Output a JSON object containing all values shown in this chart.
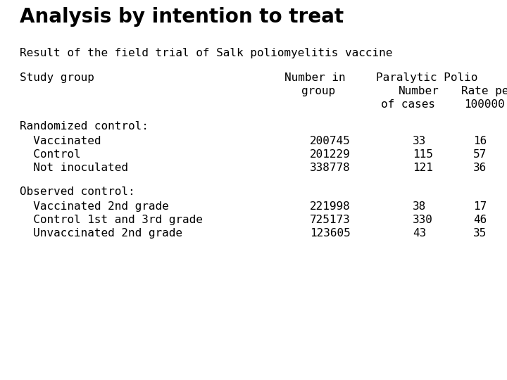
{
  "title": "Analysis by intention to treat",
  "subtitle": "Result of the field trial of Salk poliomyelitis vaccine",
  "section1_header": "Randomized control:",
  "section1_rows": [
    [
      "  Vaccinated",
      "200745",
      "33",
      "16"
    ],
    [
      "  Control",
      "201229",
      "115",
      "57"
    ],
    [
      "  Not inoculated",
      "338778",
      "121",
      "36"
    ]
  ],
  "section2_header": "Observed control:",
  "section2_rows": [
    [
      "  Vaccinated 2nd grade",
      "221998",
      "38",
      "17"
    ],
    [
      "  Control 1st and 3rd grade",
      "725173",
      "330",
      "46"
    ],
    [
      "  Unvaccinated 2nd grade",
      "123605",
      "43",
      "35"
    ]
  ],
  "bg_color": "#ffffff",
  "text_color": "#000000",
  "title_fontsize": 20,
  "body_fontsize": 11.5
}
